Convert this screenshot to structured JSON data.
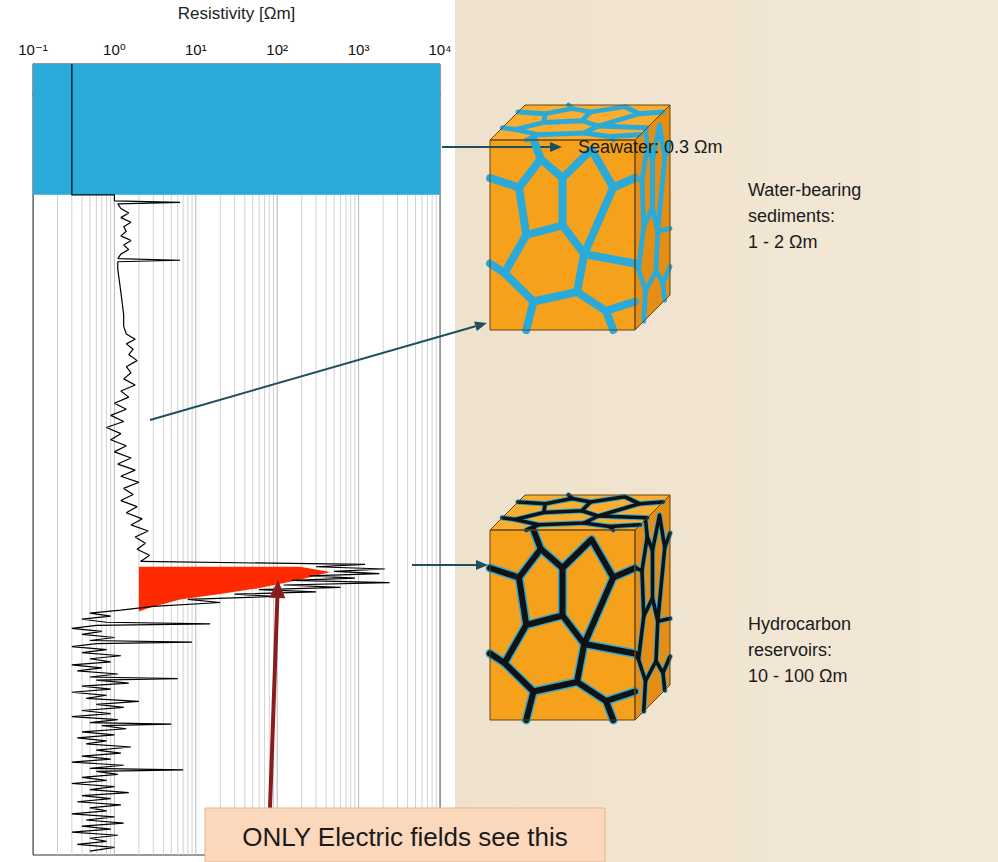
{
  "chart_data": {
    "type": "line",
    "x_label": "Resistivity [Ωm]",
    "log": "x",
    "xlim": [
      0.1,
      10000
    ],
    "xticks": [
      {
        "value": 0.1,
        "label": "10⁻¹"
      },
      {
        "value": 1,
        "label": "10⁰"
      },
      {
        "value": 10,
        "label": "10¹"
      },
      {
        "value": 100,
        "label": "10²"
      },
      {
        "value": 1000,
        "label": "10³"
      },
      {
        "value": 10000,
        "label": "10⁴"
      }
    ],
    "ylim": [
      100,
      -4
    ],
    "yticks": [],
    "grid": true,
    "tick_labels": "x",
    "series": [
      {
        "type": "band",
        "color": "#2aaad8",
        "y": [
          -4,
          13.2
        ]
      },
      {
        "type": "area",
        "color": "#ff2a00",
        "points": [
          [
            2,
            62.1
          ],
          [
            190,
            62.1
          ],
          [
            450,
            62.8
          ],
          [
            190,
            63.8
          ],
          [
            61,
            64.9
          ],
          [
            20,
            65.7
          ],
          [
            6.4,
            66.4
          ],
          [
            2.7,
            67.5
          ],
          [
            2,
            68.0
          ]
        ]
      },
      {
        "type": "line",
        "color": "#000000",
        "points": [
          [
            0.3,
            -4
          ],
          [
            0.3,
            13.2
          ],
          [
            1.0,
            13.2
          ],
          [
            1.0,
            14.0
          ],
          [
            6.4,
            14.2
          ],
          [
            1.1,
            14.4
          ],
          [
            1.2,
            15.0
          ],
          [
            1.5,
            15.6
          ],
          [
            1.2,
            16.2
          ],
          [
            1.6,
            16.8
          ],
          [
            1.3,
            17.4
          ],
          [
            1.4,
            18.0
          ],
          [
            1.2,
            18.6
          ],
          [
            1.6,
            19.2
          ],
          [
            1.3,
            19.8
          ],
          [
            1.5,
            20.4
          ],
          [
            1.2,
            21.0
          ],
          [
            1.1,
            21.6
          ],
          [
            6.4,
            21.8
          ],
          [
            1.1,
            22.0
          ],
          [
            1.1,
            23.0
          ],
          [
            1.15,
            24.5
          ],
          [
            1.2,
            26.0
          ],
          [
            1.25,
            27.5
          ],
          [
            1.3,
            29.0
          ],
          [
            1.3,
            30.5
          ],
          [
            1.4,
            31.5
          ],
          [
            1.8,
            32.2
          ],
          [
            1.4,
            32.8
          ],
          [
            1.7,
            33.5
          ],
          [
            1.5,
            34.2
          ],
          [
            1.9,
            35.0
          ],
          [
            1.4,
            35.8
          ],
          [
            1.6,
            36.6
          ],
          [
            1.3,
            37.4
          ],
          [
            1.8,
            38.2
          ],
          [
            1.2,
            39.0
          ],
          [
            1.5,
            39.8
          ],
          [
            1.0,
            40.6
          ],
          [
            1.4,
            41.4
          ],
          [
            0.9,
            42.2
          ],
          [
            1.3,
            43.0
          ],
          [
            0.8,
            43.8
          ],
          [
            1.2,
            44.6
          ],
          [
            0.9,
            45.4
          ],
          [
            1.4,
            46.2
          ],
          [
            1.0,
            47.0
          ],
          [
            1.6,
            47.8
          ],
          [
            1.1,
            48.6
          ],
          [
            1.8,
            49.4
          ],
          [
            1.2,
            50.2
          ],
          [
            2.0,
            51.0
          ],
          [
            1.3,
            51.8
          ],
          [
            1.7,
            52.6
          ],
          [
            1.2,
            53.4
          ],
          [
            1.9,
            54.2
          ],
          [
            1.4,
            55.0
          ],
          [
            2.2,
            55.8
          ],
          [
            1.6,
            56.6
          ],
          [
            2.6,
            57.4
          ],
          [
            1.8,
            58.2
          ],
          [
            2.4,
            59.0
          ],
          [
            1.9,
            59.8
          ],
          [
            2.7,
            60.6
          ],
          [
            2.1,
            61.4
          ],
          [
            1200,
            61.8
          ],
          [
            300,
            62.1
          ],
          [
            2100,
            62.4
          ],
          [
            500,
            62.7
          ],
          [
            1800,
            63.0
          ],
          [
            250,
            63.3
          ],
          [
            900,
            63.6
          ],
          [
            150,
            63.9
          ],
          [
            2400,
            64.2
          ],
          [
            120,
            64.5
          ],
          [
            600,
            64.8
          ],
          [
            60,
            65.1
          ],
          [
            300,
            65.4
          ],
          [
            30,
            65.7
          ],
          [
            90,
            66.0
          ],
          [
            8,
            66.4
          ],
          [
            20,
            66.8
          ],
          [
            3,
            67.3
          ],
          [
            1.2,
            67.8
          ],
          [
            0.5,
            68.2
          ],
          [
            0.9,
            68.6
          ],
          [
            0.4,
            69.0
          ],
          [
            0.8,
            69.4
          ],
          [
            15,
            69.6
          ],
          [
            0.6,
            69.8
          ],
          [
            0.3,
            70.2
          ],
          [
            0.7,
            70.6
          ],
          [
            0.4,
            71.0
          ],
          [
            1.0,
            71.4
          ],
          [
            0.5,
            71.8
          ],
          [
            9,
            72.0
          ],
          [
            0.6,
            72.2
          ],
          [
            0.3,
            72.6
          ],
          [
            0.8,
            73.0
          ],
          [
            0.4,
            73.4
          ],
          [
            1.2,
            73.8
          ],
          [
            0.5,
            74.2
          ],
          [
            0.9,
            74.6
          ],
          [
            0.3,
            75.0
          ],
          [
            0.7,
            75.4
          ],
          [
            0.35,
            75.8
          ],
          [
            1.1,
            76.2
          ],
          [
            0.5,
            76.6
          ],
          [
            6,
            76.8
          ],
          [
            0.6,
            77.0
          ],
          [
            1.5,
            77.4
          ],
          [
            0.4,
            77.8
          ],
          [
            0.9,
            78.2
          ],
          [
            0.3,
            78.6
          ],
          [
            0.8,
            79.0
          ],
          [
            0.45,
            79.4
          ],
          [
            2.0,
            79.8
          ],
          [
            0.6,
            80.2
          ],
          [
            1.3,
            80.6
          ],
          [
            0.4,
            81.0
          ],
          [
            0.9,
            81.4
          ],
          [
            0.3,
            81.8
          ],
          [
            1.1,
            82.2
          ],
          [
            0.5,
            82.6
          ],
          [
            5,
            82.8
          ],
          [
            0.7,
            83.0
          ],
          [
            1.4,
            83.4
          ],
          [
            0.4,
            83.8
          ],
          [
            1.0,
            84.2
          ],
          [
            0.35,
            84.6
          ],
          [
            0.8,
            85.0
          ],
          [
            0.45,
            85.4
          ],
          [
            1.6,
            85.8
          ],
          [
            0.6,
            86.2
          ],
          [
            1.2,
            86.6
          ],
          [
            0.4,
            87.0
          ],
          [
            0.9,
            87.4
          ],
          [
            0.3,
            87.8
          ],
          [
            1.3,
            88.2
          ],
          [
            0.5,
            88.6
          ],
          [
            7,
            88.8
          ],
          [
            0.6,
            89.0
          ],
          [
            1.1,
            89.4
          ],
          [
            0.4,
            89.8
          ],
          [
            0.8,
            90.2
          ],
          [
            0.3,
            90.6
          ],
          [
            1.0,
            91.0
          ],
          [
            0.5,
            91.4
          ],
          [
            1.5,
            91.8
          ],
          [
            0.4,
            92.2
          ],
          [
            0.9,
            92.6
          ],
          [
            0.35,
            93.0
          ],
          [
            1.2,
            93.4
          ],
          [
            0.5,
            93.8
          ],
          [
            0.8,
            94.2
          ],
          [
            0.3,
            94.6
          ],
          [
            1.0,
            95.0
          ],
          [
            0.45,
            95.4
          ],
          [
            1.3,
            95.8
          ],
          [
            0.4,
            96.2
          ],
          [
            0.9,
            96.6
          ],
          [
            0.3,
            97.0
          ],
          [
            1.1,
            97.4
          ],
          [
            0.5,
            97.8
          ],
          [
            0.8,
            98.2
          ],
          [
            0.35,
            98.6
          ],
          [
            1.0,
            99.0
          ],
          [
            0.5,
            99.5
          ]
        ]
      }
    ],
    "annotations": [
      [
        "Seawater: 0.3 Ωm"
      ],
      [
        "Water-bearing",
        "sediments:",
        "1 - 2 Ωm"
      ],
      [
        "Hydrocarbon",
        "reservoirs:",
        "10 - 100 Ωm"
      ],
      [
        "ONLY Electric fields see this"
      ]
    ]
  }
}
